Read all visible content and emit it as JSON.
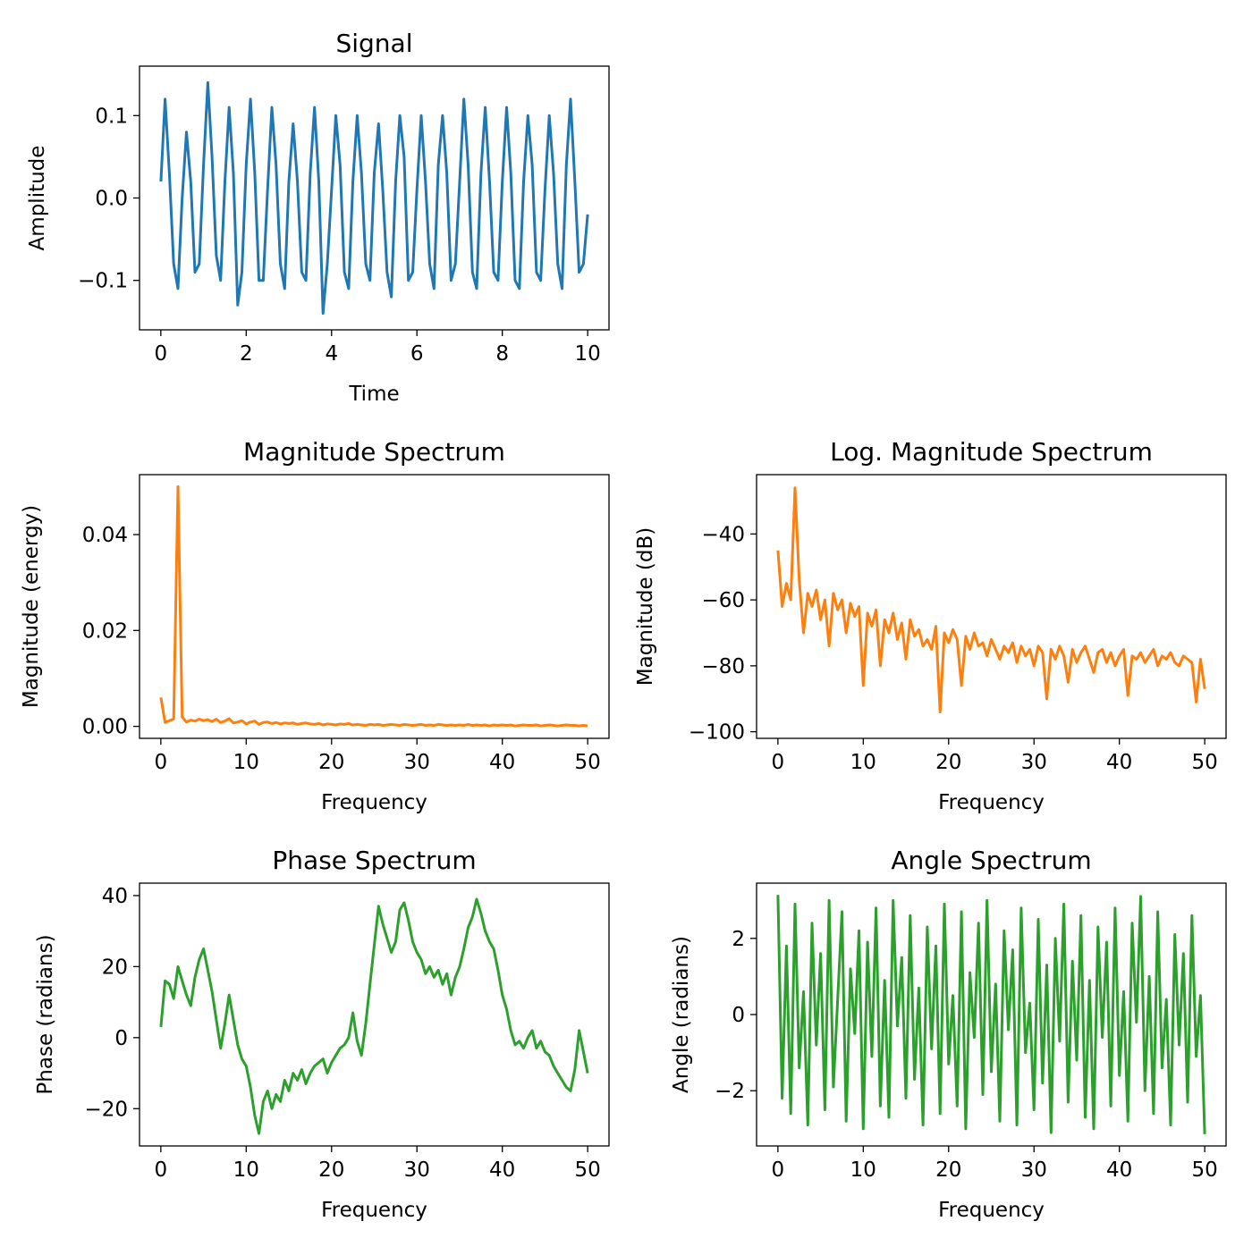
{
  "chart_data": [
    {
      "type": "line",
      "title": "Signal",
      "xlabel": "Time",
      "ylabel": "Amplitude",
      "color": "#1f77b4",
      "xlim": [
        -0.5,
        10.5
      ],
      "ylim": [
        -0.16,
        0.16
      ],
      "xticks": [
        0,
        2,
        4,
        6,
        8,
        10
      ],
      "xtick_labels": [
        "0",
        "2",
        "4",
        "6",
        "8",
        "10"
      ],
      "yticks": [
        -0.1,
        0.0,
        0.1
      ],
      "ytick_labels": [
        "−0.1",
        "0.0",
        "0.1"
      ],
      "x_start": 0,
      "x_step": 0.1,
      "values": [
        0.02,
        0.12,
        0.03,
        -0.08,
        -0.11,
        0.0,
        0.08,
        0.02,
        -0.09,
        -0.08,
        0.04,
        0.14,
        0.05,
        -0.07,
        -0.1,
        0.02,
        0.11,
        0.03,
        -0.13,
        -0.09,
        0.04,
        0.12,
        0.03,
        -0.1,
        -0.1,
        0.01,
        0.11,
        0.04,
        -0.08,
        -0.11,
        0.02,
        0.09,
        0.02,
        -0.09,
        -0.1,
        0.03,
        0.11,
        0.02,
        -0.14,
        -0.08,
        0.01,
        0.1,
        0.04,
        -0.09,
        -0.11,
        0.02,
        0.1,
        0.03,
        -0.08,
        -0.1,
        0.03,
        0.09,
        0.01,
        -0.09,
        -0.12,
        0.02,
        0.1,
        0.05,
        -0.1,
        -0.09,
        0.01,
        0.1,
        0.02,
        -0.08,
        -0.11,
        0.04,
        0.1,
        0.03,
        -0.1,
        -0.08,
        0.02,
        0.12,
        0.04,
        -0.09,
        -0.11,
        0.03,
        0.11,
        0.02,
        -0.09,
        -0.1,
        0.02,
        0.11,
        0.03,
        -0.1,
        -0.11,
        0.02,
        0.1,
        0.04,
        -0.09,
        -0.1,
        0.01,
        0.1,
        0.03,
        -0.08,
        -0.11,
        0.04,
        0.12,
        0.02,
        -0.09,
        -0.08,
        -0.02
      ]
    },
    {
      "type": "line",
      "title": "Magnitude Spectrum",
      "xlabel": "Frequency",
      "ylabel": "Magnitude (energy)",
      "color": "#ff7f0e",
      "xlim": [
        -2.5,
        52.5
      ],
      "ylim": [
        -0.0025,
        0.0525
      ],
      "xticks": [
        0,
        10,
        20,
        30,
        40,
        50
      ],
      "xtick_labels": [
        "0",
        "10",
        "20",
        "30",
        "40",
        "50"
      ],
      "yticks": [
        0.0,
        0.02,
        0.04
      ],
      "ytick_labels": [
        "0.00",
        "0.02",
        "0.04"
      ],
      "x_start": 0,
      "x_step": 0.5,
      "values": [
        0.006,
        0.0008,
        0.0012,
        0.0015,
        0.05,
        0.002,
        0.0009,
        0.0013,
        0.0011,
        0.0015,
        0.0012,
        0.0014,
        0.001,
        0.0015,
        0.0008,
        0.0011,
        0.0016,
        0.0007,
        0.0009,
        0.0012,
        0.0005,
        0.0009,
        0.0011,
        0.0004,
        0.0008,
        0.0009,
        0.0006,
        0.0008,
        0.0005,
        0.0007,
        0.0006,
        0.0007,
        0.0004,
        0.0006,
        0.0007,
        0.0005,
        0.0004,
        0.0006,
        0.0003,
        0.0005,
        0.0004,
        0.0003,
        0.0005,
        0.0004,
        0.0006,
        0.0003,
        0.0004,
        0.0003,
        0.0002,
        0.0004,
        0.0003,
        0.0004,
        0.0002,
        0.0003,
        0.0004,
        0.0003,
        0.0002,
        0.0004,
        0.0003,
        0.0002,
        0.0003,
        0.0004,
        0.0002,
        0.0003,
        0.0002,
        0.0004,
        0.0003,
        0.0002,
        0.0003,
        0.0002,
        0.0003,
        0.0002,
        0.0004,
        0.0002,
        0.0003,
        0.0002,
        0.0003,
        0.0001,
        0.0003,
        0.0002,
        0.0003,
        0.0002,
        0.0003,
        0.0001,
        0.0002,
        0.0003,
        0.0002,
        0.0002,
        0.0003,
        0.0001,
        0.0002,
        0.0003,
        0.0002,
        0.0001,
        0.0002,
        0.0003,
        0.0002,
        0.0002,
        0.0001,
        0.0002,
        0.0001
      ]
    },
    {
      "type": "line",
      "title": "Log. Magnitude Spectrum",
      "xlabel": "Frequency",
      "ylabel": "Magnitude (dB)",
      "color": "#ff7f0e",
      "xlim": [
        -2.5,
        52.5
      ],
      "ylim": [
        -102,
        -22
      ],
      "xticks": [
        0,
        10,
        20,
        30,
        40,
        50
      ],
      "xtick_labels": [
        "0",
        "10",
        "20",
        "30",
        "40",
        "50"
      ],
      "yticks": [
        -100,
        -80,
        -60,
        -40
      ],
      "ytick_labels": [
        "−100",
        "−80",
        "−60",
        "−40"
      ],
      "x_start": 0,
      "x_step": 0.5,
      "values": [
        -45,
        -62,
        -55,
        -60,
        -26,
        -54,
        -70,
        -58,
        -62,
        -57,
        -66,
        -60,
        -74,
        -58,
        -63,
        -60,
        -70,
        -61,
        -65,
        -62,
        -86,
        -64,
        -68,
        -63,
        -80,
        -66,
        -70,
        -64,
        -72,
        -67,
        -78,
        -66,
        -71,
        -69,
        -74,
        -72,
        -75,
        -68,
        -94,
        -70,
        -73,
        -69,
        -72,
        -86,
        -71,
        -75,
        -70,
        -74,
        -73,
        -77,
        -72,
        -75,
        -78,
        -74,
        -76,
        -73,
        -79,
        -74,
        -77,
        -75,
        -80,
        -74,
        -76,
        -90,
        -75,
        -78,
        -74,
        -77,
        -85,
        -75,
        -79,
        -76,
        -74,
        -78,
        -82,
        -76,
        -75,
        -79,
        -76,
        -80,
        -77,
        -75,
        -89,
        -77,
        -78,
        -76,
        -79,
        -77,
        -75,
        -80,
        -77,
        -78,
        -76,
        -79,
        -80,
        -77,
        -78,
        -79,
        -91,
        -78,
        -87
      ]
    },
    {
      "type": "line",
      "title": "Phase Spectrum",
      "xlabel": "Frequency",
      "ylabel": "Phase (radians)",
      "color": "#2ca02c",
      "xlim": [
        -2.5,
        52.5
      ],
      "ylim": [
        -30.5,
        43.5
      ],
      "xticks": [
        0,
        10,
        20,
        30,
        40,
        50
      ],
      "xtick_labels": [
        "0",
        "10",
        "20",
        "30",
        "40",
        "50"
      ],
      "yticks": [
        -20,
        0,
        20,
        40
      ],
      "ytick_labels": [
        "−20",
        "0",
        "20",
        "40"
      ],
      "x_start": 0,
      "x_step": 0.5,
      "values": [
        3,
        16,
        15,
        11,
        20,
        16,
        12,
        9,
        17,
        22,
        25,
        19,
        13,
        5,
        -3,
        4,
        12,
        5,
        -2,
        -6,
        -8,
        -14,
        -22,
        -27,
        -18,
        -15,
        -20,
        -16,
        -18,
        -12,
        -15,
        -10,
        -12,
        -9,
        -13,
        -10,
        -8,
        -7,
        -6,
        -10,
        -7,
        -5,
        -3,
        -2,
        0,
        7,
        -1,
        -5,
        4,
        15,
        26,
        37,
        32,
        28,
        24,
        27,
        36,
        38,
        33,
        27,
        24,
        22,
        18,
        20,
        17,
        19,
        15,
        18,
        12,
        17,
        20,
        25,
        31,
        34,
        39,
        35,
        30,
        27,
        25,
        19,
        12,
        8,
        2,
        -2,
        -1,
        -3,
        0,
        2,
        -3,
        -1,
        -4,
        -5,
        -8,
        -10,
        -12,
        -14,
        -15,
        -9,
        2,
        -4,
        -10
      ]
    },
    {
      "type": "line",
      "title": "Angle Spectrum",
      "xlabel": "Frequency",
      "ylabel": "Angle (radians)",
      "color": "#2ca02c",
      "xlim": [
        -2.5,
        52.5
      ],
      "ylim": [
        -3.45,
        3.45
      ],
      "xticks": [
        0,
        10,
        20,
        30,
        40,
        50
      ],
      "xtick_labels": [
        "0",
        "10",
        "20",
        "30",
        "40",
        "50"
      ],
      "yticks": [
        -2,
        0,
        2
      ],
      "ytick_labels": [
        "−2",
        "0",
        "2"
      ],
      "x_start": 0,
      "x_step": 0.5,
      "values": [
        3.14,
        -2.2,
        1.8,
        -2.6,
        2.9,
        -1.4,
        0.6,
        -2.9,
        2.4,
        -0.8,
        1.6,
        -2.5,
        3.0,
        -1.9,
        0.4,
        2.7,
        -2.8,
        1.2,
        -0.5,
        2.2,
        -3.0,
        1.9,
        -1.1,
        2.8,
        -2.4,
        0.9,
        -2.7,
        3.0,
        -0.3,
        1.5,
        -2.2,
        2.6,
        -1.7,
        0.7,
        -2.9,
        2.3,
        -0.9,
        1.8,
        -2.6,
        2.9,
        -1.3,
        0.5,
        -2.4,
        2.7,
        -3.0,
        1.1,
        -0.6,
        2.4,
        -2.1,
        3.0,
        -1.5,
        0.8,
        -2.8,
        2.2,
        -0.4,
        1.7,
        -2.9,
        2.8,
        -1.0,
        0.3,
        -2.5,
        2.5,
        -1.8,
        1.3,
        -3.1,
        2.0,
        -0.7,
        2.9,
        -2.3,
        1.4,
        -1.2,
        2.6,
        -2.7,
        0.9,
        -3.0,
        2.3,
        -0.6,
        1.9,
        -2.4,
        2.8,
        -1.6,
        0.6,
        -2.8,
        2.4,
        -0.2,
        3.1,
        -2.0,
        1.0,
        -2.6,
        2.7,
        -1.4,
        0.4,
        -2.9,
        2.1,
        -0.8,
        1.6,
        -2.3,
        2.6,
        -1.1,
        0.5,
        -3.14
      ]
    }
  ]
}
